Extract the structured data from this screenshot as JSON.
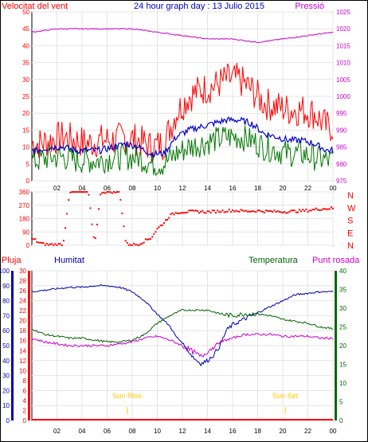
{
  "colors": {
    "wind": "#ff0000",
    "pressure": "#cc00cc",
    "gust_avg": "#0000cc",
    "wind_min": "#007700",
    "humidity": "#0000aa",
    "temperature": "#006600",
    "dewpoint": "#cc00cc",
    "rain": "#ff0000",
    "sun_marker": "#ffcc00"
  },
  "chart_data": [
    {
      "type": "line",
      "title": "24 hour graph day : 13 Julio 2015",
      "left_axis_label": "Velocitat del vent",
      "right_axis_label": "Pressió",
      "x_ticks": [
        "02",
        "04",
        "06",
        "08",
        "10",
        "12",
        "14",
        "16",
        "18",
        "20",
        "22",
        "00"
      ],
      "left_ticks": [
        "0",
        "5",
        "10",
        "15",
        "20",
        "25",
        "30",
        "35",
        "40",
        "45",
        "50"
      ],
      "right_ticks": [
        "975",
        "980",
        "985",
        "990",
        "995",
        "1000",
        "1005",
        "1010",
        "1015",
        "1020",
        "1025"
      ],
      "ylim_left": [
        0,
        50
      ],
      "ylim_right": [
        975,
        1025
      ],
      "series": [
        {
          "key": "wind_peak",
          "x": [
            0.5,
            1.5,
            2.5,
            3.5,
            4.5,
            5.5,
            6.5,
            7.5,
            8.5,
            9.5,
            10.5,
            11.5,
            12.5,
            13.5,
            14.5,
            15.5,
            16.5,
            17.5,
            18.5,
            19.5,
            20.5,
            21.5,
            22.5,
            23.5
          ],
          "y": [
            11,
            12,
            13,
            12,
            11,
            12,
            12,
            13,
            12,
            10,
            11,
            20,
            25,
            27,
            28,
            30,
            30,
            27,
            23,
            22,
            21,
            21,
            20,
            16
          ]
        },
        {
          "key": "wind_avg",
          "x": [
            0.5,
            1.5,
            2.5,
            3.5,
            4.5,
            5.5,
            6.5,
            7.5,
            8.5,
            9.5,
            10.5,
            11.5,
            12.5,
            13.5,
            14.5,
            15.5,
            16.5,
            17.5,
            18.5,
            19.5,
            20.5,
            21.5,
            22.5,
            23.5
          ],
          "y": [
            9,
            10,
            10,
            9,
            9,
            9,
            10,
            11,
            10,
            8,
            8,
            13,
            15,
            16,
            17,
            18,
            18,
            17,
            14,
            13,
            12,
            12,
            11,
            9
          ]
        },
        {
          "key": "wind_min",
          "x": [
            0.5,
            1.5,
            2.5,
            3.5,
            4.5,
            5.5,
            6.5,
            7.5,
            8.5,
            9.5,
            10.5,
            11.5,
            12.5,
            13.5,
            14.5,
            15.5,
            16.5,
            17.5,
            18.5,
            19.5,
            20.5,
            21.5,
            22.5,
            23.5
          ],
          "y": [
            6,
            7,
            7,
            6,
            6,
            6,
            7,
            7,
            7,
            5,
            5,
            8,
            10,
            11,
            12,
            13,
            13,
            12,
            10,
            9,
            8,
            8,
            7,
            6
          ]
        },
        {
          "key": "pressure",
          "x": [
            0,
            2,
            4,
            6,
            8,
            10,
            12,
            14,
            16,
            18,
            20,
            22,
            24
          ],
          "y": [
            1019,
            1020,
            1020,
            1020,
            1020,
            1019,
            1018,
            1017,
            1017,
            1016,
            1017,
            1018,
            1019
          ]
        }
      ]
    },
    {
      "type": "scatter",
      "left_ticks": [
        "0",
        "90",
        "180",
        "270",
        "360"
      ],
      "right_labels": [
        "N",
        "W",
        "S",
        "E",
        "N"
      ],
      "ylim": [
        0,
        360
      ],
      "series": [
        {
          "key": "wind_dir",
          "x": [
            0.2,
            0.5,
            1,
            1.5,
            2,
            2.5,
            3,
            3.5,
            4,
            4.5,
            5,
            5.5,
            6,
            6.5,
            7,
            7.5,
            8,
            8.5,
            9,
            9.5,
            10,
            10.5,
            11,
            11.5,
            12,
            13,
            14,
            15,
            16,
            17,
            18,
            19,
            20,
            21,
            22,
            23,
            24
          ],
          "y": [
            40,
            20,
            5,
            5,
            5,
            5,
            360,
            360,
            360,
            360,
            5,
            360,
            360,
            360,
            360,
            10,
            5,
            5,
            30,
            50,
            110,
            150,
            200,
            220,
            225,
            228,
            225,
            230,
            235,
            230,
            232,
            228,
            226,
            230,
            235,
            245,
            250
          ]
        }
      ]
    },
    {
      "type": "line",
      "labels": {
        "rain": "Pluja",
        "humidity": "Humitat",
        "temperature": "Temperatura",
        "dewpoint": "Punt rosada"
      },
      "sun_rise_label": "Sun Rise",
      "sun_set_label": "Sun Set",
      "sun_rise_x": 7.6,
      "sun_set_x": 20.2,
      "x_ticks": [
        "02",
        "04",
        "06",
        "08",
        "10",
        "12",
        "14",
        "16",
        "18",
        "20",
        "22",
        "00"
      ],
      "humidity_ticks": [
        "0",
        "10",
        "20",
        "30",
        "40",
        "50",
        "60",
        "70",
        "80",
        "90",
        "100"
      ],
      "rain_ticks": [
        "0",
        "2",
        "4",
        "6",
        "8",
        "10",
        "12",
        "14",
        "16",
        "18",
        "20",
        "22",
        "24",
        "26",
        "28",
        "30"
      ],
      "temp_ticks": [
        "0",
        "5",
        "10",
        "15",
        "20",
        "25",
        "30",
        "35",
        "40"
      ],
      "ylim_humidity": [
        0,
        100
      ],
      "ylim_rain": [
        0,
        30
      ],
      "ylim_temp": [
        0,
        40
      ],
      "series": [
        {
          "key": "humidity",
          "x": [
            0,
            1,
            2,
            3,
            4,
            5,
            6,
            7,
            8,
            9,
            10,
            11,
            11.5,
            12,
            12.5,
            13,
            13.5,
            14,
            14.5,
            15,
            15.5,
            16,
            17,
            18,
            19,
            20,
            21,
            22,
            23,
            24
          ],
          "y": [
            86,
            87,
            88,
            89,
            89,
            90,
            90,
            89,
            86,
            80,
            71,
            63,
            56,
            52,
            46,
            41,
            38,
            40,
            44,
            50,
            60,
            64,
            68,
            72,
            76,
            80,
            84,
            85,
            86,
            86
          ]
        },
        {
          "key": "temperature",
          "x": [
            0,
            1,
            2,
            3,
            4,
            5,
            6,
            7,
            8,
            9,
            10,
            11,
            12,
            13,
            14,
            15,
            16,
            17,
            18,
            19,
            20,
            21,
            22,
            23,
            24
          ],
          "y": [
            24.5,
            23,
            22.5,
            22,
            22,
            21.5,
            21,
            21,
            21.5,
            23,
            26,
            28,
            29.5,
            29.5,
            29.5,
            28.5,
            28,
            28.5,
            28.5,
            28,
            27,
            26.5,
            26,
            25,
            24.5
          ]
        },
        {
          "key": "dewpoint",
          "x": [
            0,
            1,
            2,
            3,
            4,
            5,
            6,
            7,
            8,
            9,
            10,
            11,
            12,
            13,
            13.5,
            14,
            15,
            16,
            17,
            18,
            19,
            20,
            21,
            22,
            23,
            24
          ],
          "y": [
            22,
            21,
            20.5,
            20,
            20,
            20,
            20,
            20.5,
            21,
            22,
            22.5,
            21.5,
            20,
            18,
            17,
            18.5,
            21,
            22,
            23,
            23,
            23,
            22.5,
            22.5,
            22.5,
            22,
            22
          ]
        },
        {
          "key": "rain",
          "x": [
            0,
            24
          ],
          "y": [
            0,
            0
          ]
        }
      ]
    }
  ]
}
